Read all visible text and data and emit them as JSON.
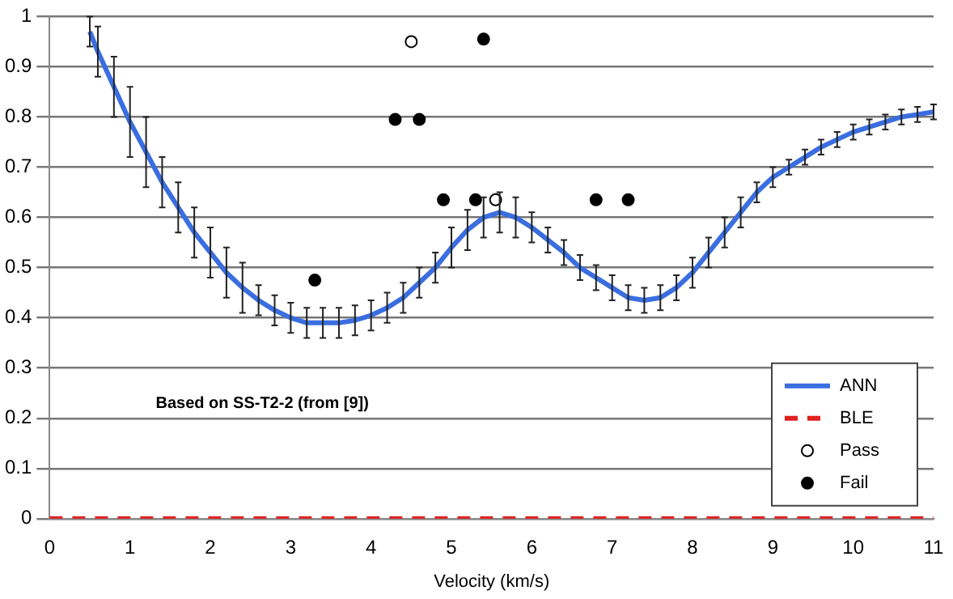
{
  "chart_data": {
    "type": "line",
    "xlabel": "Velocity (km/s)",
    "xlim": [
      0,
      11
    ],
    "xticks": [
      0,
      1,
      2,
      3,
      4,
      5,
      6,
      7,
      8,
      9,
      10,
      11
    ],
    "ylim": [
      0,
      1
    ],
    "yticks": [
      0,
      0.1,
      0.2,
      0.3,
      0.4,
      0.5,
      0.6,
      0.7,
      0.8,
      0.9,
      1
    ],
    "grid": "y",
    "legend": "bottom right",
    "annotations": [
      "Based on SS-T2-2 (from [9])"
    ],
    "series": [
      {
        "name": "ANN",
        "color": "#3a6ee0",
        "line_style": "solid",
        "marker": "none",
        "x": [
          0.5,
          0.6,
          0.8,
          1.0,
          1.2,
          1.4,
          1.6,
          1.8,
          2.0,
          2.2,
          2.4,
          2.6,
          2.8,
          3.0,
          3.2,
          3.4,
          3.6,
          3.8,
          4.0,
          4.2,
          4.4,
          4.6,
          4.8,
          5.0,
          5.2,
          5.4,
          5.6,
          5.8,
          6.0,
          6.2,
          6.4,
          6.6,
          6.8,
          7.0,
          7.2,
          7.4,
          7.6,
          7.8,
          8.0,
          8.2,
          8.4,
          8.6,
          8.8,
          9.0,
          9.2,
          9.4,
          9.6,
          9.8,
          10.0,
          10.2,
          10.4,
          10.6,
          10.8,
          11.0
        ],
        "values": [
          0.97,
          0.93,
          0.86,
          0.79,
          0.73,
          0.67,
          0.62,
          0.57,
          0.53,
          0.49,
          0.46,
          0.435,
          0.415,
          0.4,
          0.39,
          0.39,
          0.39,
          0.395,
          0.405,
          0.42,
          0.44,
          0.47,
          0.5,
          0.54,
          0.575,
          0.6,
          0.61,
          0.6,
          0.58,
          0.555,
          0.53,
          0.5,
          0.48,
          0.46,
          0.44,
          0.435,
          0.44,
          0.46,
          0.49,
          0.53,
          0.57,
          0.61,
          0.65,
          0.68,
          0.7,
          0.72,
          0.74,
          0.755,
          0.77,
          0.78,
          0.79,
          0.8,
          0.805,
          0.81
        ],
        "errors": [
          0.03,
          0.05,
          0.06,
          0.07,
          0.07,
          0.05,
          0.05,
          0.05,
          0.05,
          0.05,
          0.05,
          0.03,
          0.03,
          0.03,
          0.03,
          0.03,
          0.03,
          0.03,
          0.03,
          0.03,
          0.03,
          0.03,
          0.03,
          0.04,
          0.04,
          0.04,
          0.04,
          0.04,
          0.03,
          0.025,
          0.025,
          0.025,
          0.025,
          0.025,
          0.025,
          0.025,
          0.025,
          0.025,
          0.03,
          0.03,
          0.03,
          0.03,
          0.02,
          0.02,
          0.015,
          0.015,
          0.015,
          0.015,
          0.015,
          0.015,
          0.015,
          0.015,
          0.015,
          0.015
        ]
      },
      {
        "name": "BLE",
        "color": "#e02020",
        "line_style": "dashed",
        "marker": "none",
        "x": [
          0,
          11
        ],
        "values": [
          0,
          0
        ]
      },
      {
        "name": "Pass",
        "type": "scatter",
        "color": "#ffffff",
        "marker": "circle",
        "x": [
          4.5,
          5.55
        ],
        "values": [
          0.95,
          0.635
        ]
      },
      {
        "name": "Fail",
        "type": "scatter",
        "color": "#000000",
        "marker": "circle",
        "x": [
          3.3,
          4.3,
          4.6,
          4.9,
          5.3,
          5.4,
          6.8,
          7.2
        ],
        "values": [
          0.475,
          0.795,
          0.795,
          0.635,
          0.635,
          0.955,
          0.635,
          0.635
        ]
      }
    ]
  }
}
